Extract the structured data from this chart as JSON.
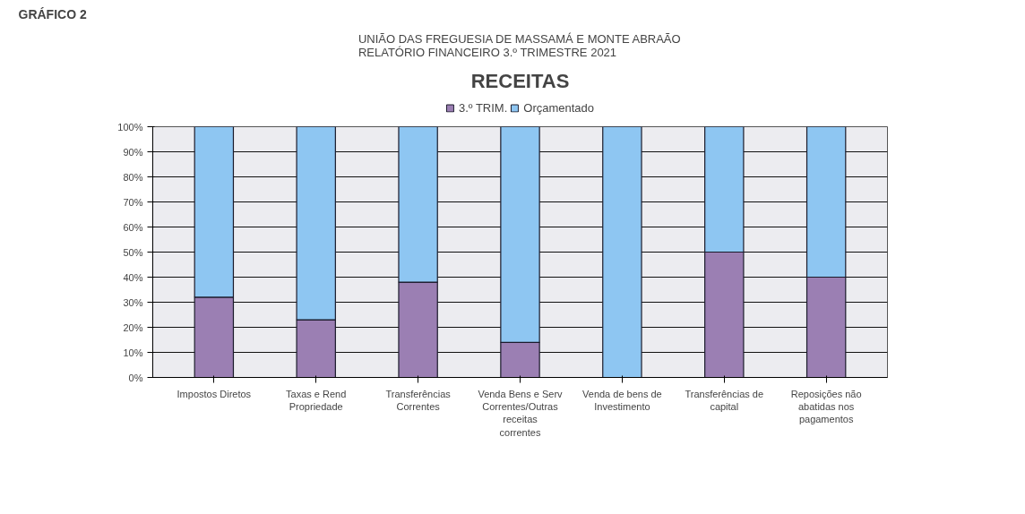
{
  "chart_data": {
    "type": "bar",
    "stacked": true,
    "title": "RECEITAS",
    "subtitle": "UNIÃO DAS FREGUESIA DE MASSAMÁ E MONTE ABRAÃO\nRELATÓRIO FINANCEIRO 3.º TRIMESTRE 2021",
    "annotations": [
      "GRÁFICO 2"
    ],
    "categories": [
      "Impostos Diretos",
      "Taxas e Rend Propriedade",
      "Transferências Correntes",
      "Venda Bens e Serv Correntes/Outras receitas correntes",
      "Venda de bens de Investimento",
      "Transferências de capital",
      "Reposições não abatidas nos pagamentos"
    ],
    "series": [
      {
        "name": "3.º TRIM.",
        "color": "#9b7fb3",
        "values": [
          32,
          23,
          38,
          14,
          0,
          50,
          40
        ]
      },
      {
        "name": "Orçamentado",
        "color": "#8ec6f2",
        "values": [
          68,
          77,
          62,
          86,
          100,
          50,
          60
        ]
      }
    ],
    "ylim": [
      0,
      100
    ],
    "yticks": [
      {
        "value": 0,
        "label": "0%"
      },
      {
        "value": 10,
        "label": "10%"
      },
      {
        "value": 20,
        "label": "20%"
      },
      {
        "value": 30,
        "label": "30%"
      },
      {
        "value": 40,
        "label": "40%"
      },
      {
        "value": 50,
        "label": "50%"
      },
      {
        "value": 60,
        "label": "60%"
      },
      {
        "value": 70,
        "label": "70%"
      },
      {
        "value": 80,
        "label": "80%"
      },
      {
        "value": 90,
        "label": "90%"
      },
      {
        "value": 100,
        "label": "100%"
      }
    ],
    "grid": "y",
    "legend": "top"
  }
}
